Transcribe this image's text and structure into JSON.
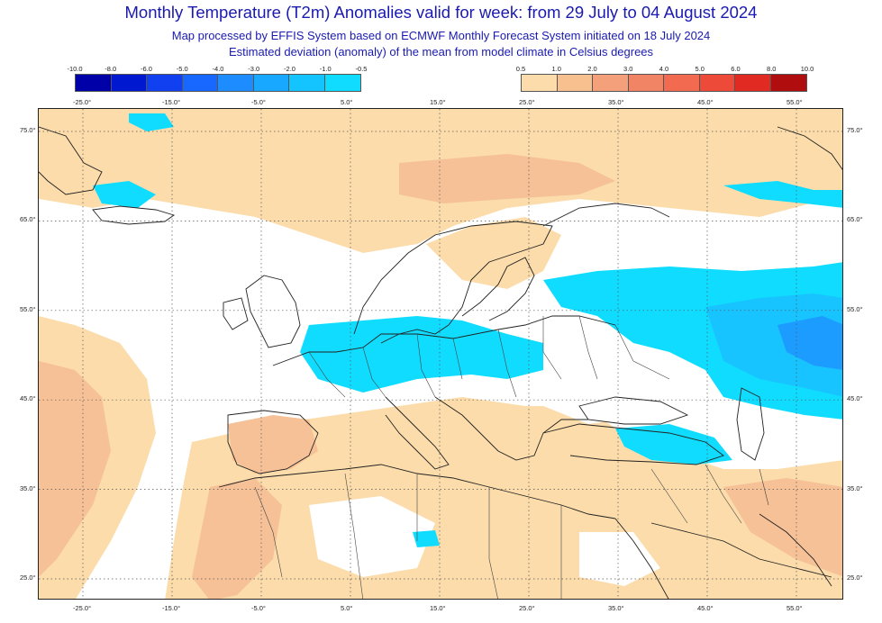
{
  "title": "Monthly Temperature (T2m) Anomalies valid for week: from 29 July to 04 August 2024",
  "subtitle1": "Map processed by EFFIS System based on ECMWF Monthly Forecast System initiated on 18 July 2024",
  "subtitle2": "Estimated deviation (anomaly) of the mean from model climate in Celsius degrees",
  "legend_cold": {
    "labels": [
      "-10.0",
      "-8.0",
      "-6.0",
      "-5.0",
      "-4.0",
      "-3.0",
      "-2.0",
      "-1.0",
      "-0.5"
    ],
    "colors": [
      "#0000a8",
      "#0018d0",
      "#1040f0",
      "#1868ff",
      "#1c8cff",
      "#18a8ff",
      "#14c4ff",
      "#10dcff"
    ]
  },
  "legend_warm": {
    "labels": [
      "0.5",
      "1.0",
      "2.0",
      "3.0",
      "4.0",
      "5.0",
      "6.0",
      "8.0",
      "10.0"
    ],
    "colors": [
      "#fbdcaa",
      "#f8c08e",
      "#f4a07a",
      "#f28466",
      "#f26a50",
      "#ee4a3a",
      "#e02a22",
      "#b00e0e"
    ]
  },
  "lon_labels": [
    "-25.0°",
    "-15.0°",
    "-5.0°",
    "5.0°",
    "15.0°",
    "25.0°",
    "35.0°",
    "45.0°",
    "55.0°"
  ],
  "lat_labels": [
    "75.0°",
    "65.0°",
    "55.0°",
    "45.0°",
    "35.0°",
    "25.0°"
  ],
  "map_colors": {
    "warm_light": "#fbdcaa",
    "warm_mid": "#f6c197",
    "warm_dark": "#ee9e74",
    "cold_light": "#10dcff",
    "cold_mid": "#18c4ff",
    "cold_dark": "#1c9cff",
    "neutral": "#ffffff",
    "coast": "#222222",
    "border": "#444444",
    "grid": "#555555"
  }
}
